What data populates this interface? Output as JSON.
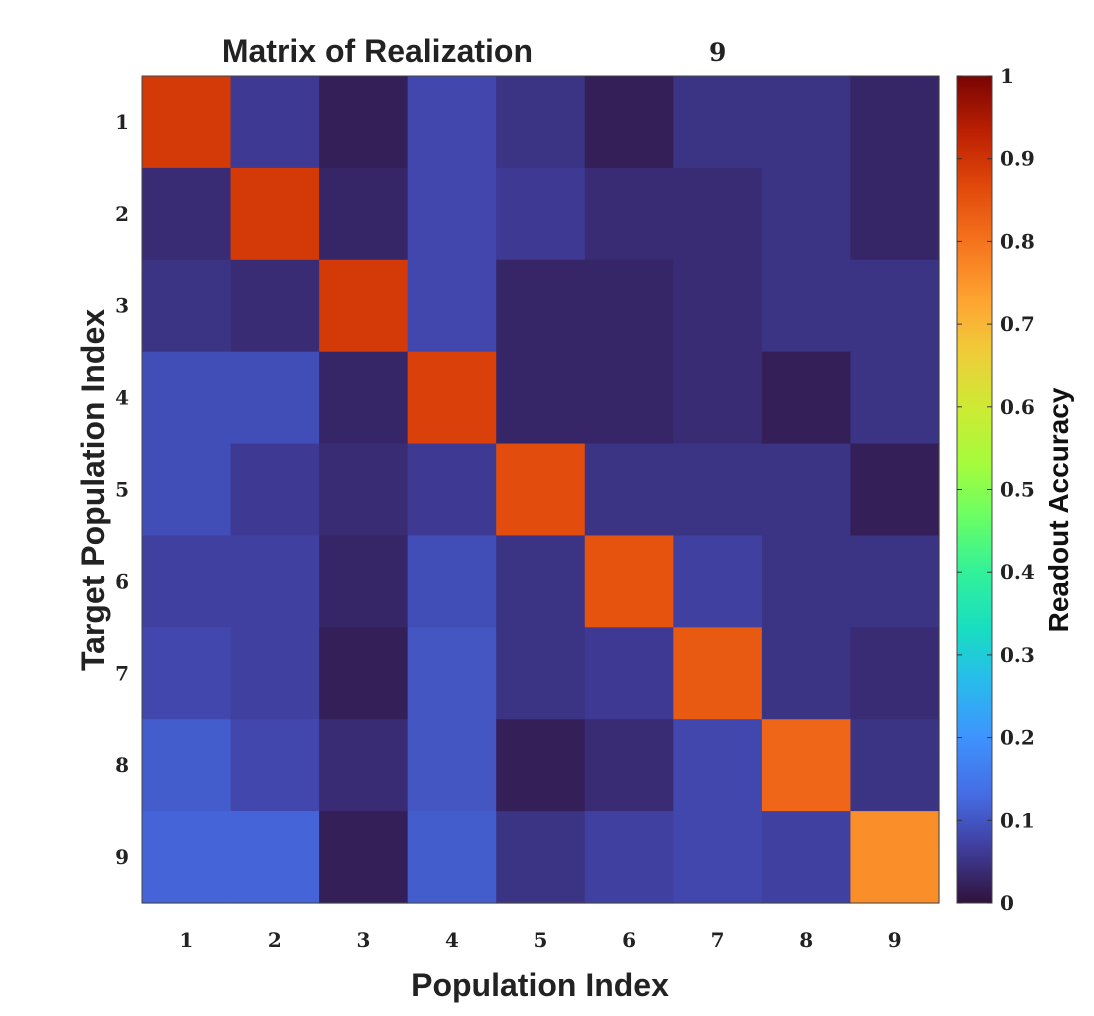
{
  "chart_data": {
    "type": "heatmap",
    "title": "Matrix of Realization",
    "title_number": "9",
    "xlabel": "Population Index",
    "ylabel": "Target Population Index",
    "x_categories": [
      "1",
      "2",
      "3",
      "4",
      "5",
      "6",
      "7",
      "8",
      "9"
    ],
    "y_categories": [
      "1",
      "2",
      "3",
      "4",
      "5",
      "6",
      "7",
      "8",
      "9"
    ],
    "values": [
      [
        0.89,
        0.06,
        0.02,
        0.08,
        0.05,
        0.02,
        0.05,
        0.05,
        0.03
      ],
      [
        0.04,
        0.89,
        0.03,
        0.08,
        0.06,
        0.04,
        0.04,
        0.05,
        0.03
      ],
      [
        0.05,
        0.04,
        0.89,
        0.08,
        0.03,
        0.03,
        0.04,
        0.05,
        0.05
      ],
      [
        0.09,
        0.09,
        0.03,
        0.88,
        0.03,
        0.03,
        0.04,
        0.02,
        0.05
      ],
      [
        0.09,
        0.06,
        0.04,
        0.06,
        0.86,
        0.05,
        0.05,
        0.05,
        0.02
      ],
      [
        0.07,
        0.07,
        0.03,
        0.09,
        0.05,
        0.85,
        0.07,
        0.05,
        0.05
      ],
      [
        0.08,
        0.07,
        0.02,
        0.1,
        0.05,
        0.06,
        0.84,
        0.05,
        0.04
      ],
      [
        0.11,
        0.08,
        0.04,
        0.1,
        0.02,
        0.04,
        0.08,
        0.82,
        0.05
      ],
      [
        0.12,
        0.12,
        0.02,
        0.11,
        0.05,
        0.07,
        0.08,
        0.07,
        0.76
      ]
    ],
    "colormap": "turbo",
    "colorbar": {
      "label": "Readout Accuracy",
      "range": [
        0,
        1
      ],
      "ticks": [
        0,
        0.1,
        0.2,
        0.3,
        0.4,
        0.5,
        0.6,
        0.7,
        0.8,
        0.9,
        1
      ],
      "tick_labels": [
        "0",
        "0.1",
        "0.2",
        "0.3",
        "0.4",
        "0.5",
        "0.6",
        "0.7",
        "0.8",
        "0.9",
        "1"
      ]
    }
  }
}
